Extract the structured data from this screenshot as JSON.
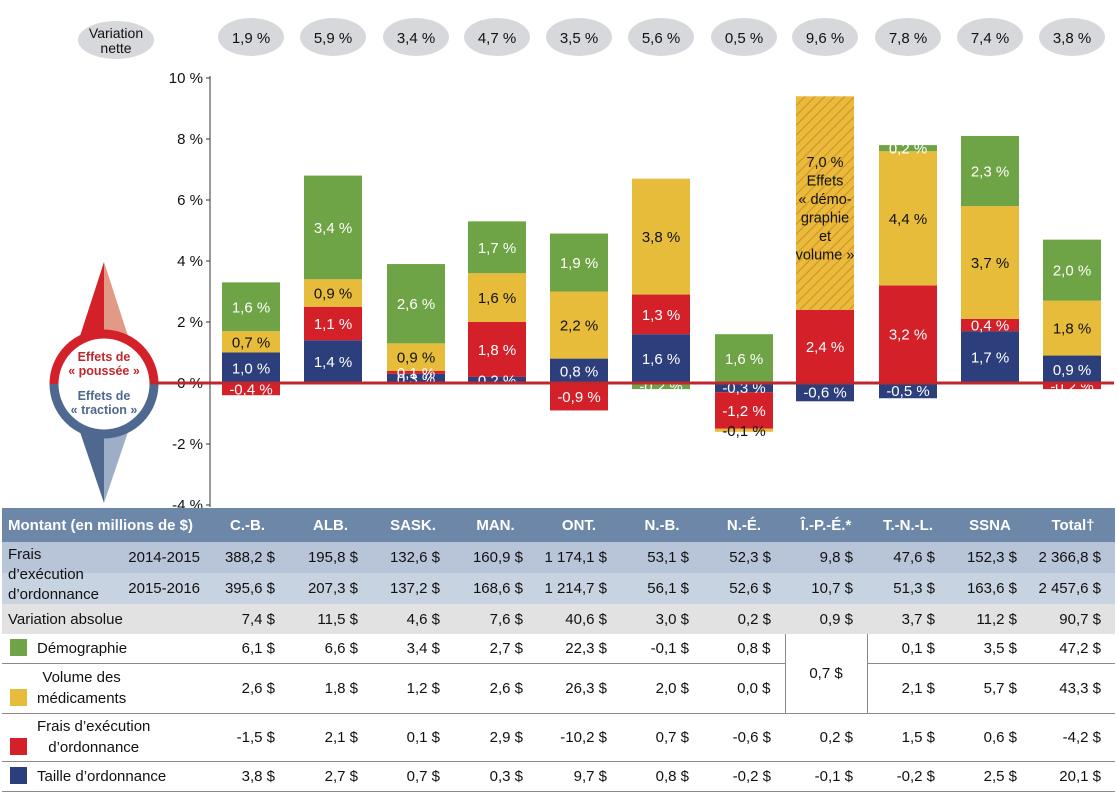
{
  "net_label": [
    "Variation",
    "nette"
  ],
  "compass": {
    "push_label": [
      "Effets de",
      "« poussée »"
    ],
    "pull_label": [
      "Effets de",
      "« traction »"
    ]
  },
  "colors": {
    "demographics": "#6ea446",
    "volume": "#e7bc3a",
    "dispensing_fee": "#d42029",
    "prescription_size": "#2c3f7c",
    "zero_line": "#c0272d"
  },
  "chart_data": {
    "type": "bar",
    "stacked": true,
    "categories": [
      "C.-B.",
      "ALB.",
      "SASK.",
      "MAN.",
      "ONT.",
      "N.-B.",
      "N.-É.",
      "Î.-P.-É.*",
      "T.-N.-L.",
      "SSNA",
      "Total†"
    ],
    "net_change": [
      "1,9 %",
      "5,9 %",
      "3,4 %",
      "4,7 %",
      "3,5 %",
      "5,6 %",
      "0,5 %",
      "9,6 %",
      "7,8 %",
      "7,4 %",
      "3,8 %"
    ],
    "ylim": [
      -4,
      10
    ],
    "yticks": [
      -4,
      -2,
      0,
      2,
      4,
      6,
      8,
      10
    ],
    "ytick_labels": [
      "-4 %",
      "-2 %",
      "0 %",
      "2 %",
      "4 %",
      "6 %",
      "8 %",
      "10 %"
    ],
    "series": [
      {
        "key": "prescription_size",
        "values": [
          1.0,
          1.4,
          0.3,
          0.2,
          0.8,
          1.6,
          -0.3,
          -0.6,
          -0.5,
          1.7,
          0.9
        ],
        "labels": [
          "1,0 %",
          "1,4 %",
          "0,3 %",
          "0,2 %",
          "0,8 %",
          "1,6 %",
          "-0,3 %",
          "-0,6 %",
          "-0,5 %",
          "1,7 %",
          "0,9 %"
        ]
      },
      {
        "key": "dispensing_fee",
        "values": [
          -0.4,
          1.1,
          0.1,
          1.8,
          -0.9,
          1.3,
          -1.2,
          2.4,
          3.2,
          0.4,
          -0.2
        ],
        "labels": [
          "-0,4 %",
          "1,1 %",
          "0,1 %",
          "1,8 %",
          "-0,9 %",
          "1,3 %",
          "-1,2 %",
          "2,4 %",
          "3,2 %",
          "0,4 %",
          "-0,2 %"
        ]
      },
      {
        "key": "volume",
        "values": [
          0.7,
          0.9,
          0.9,
          1.6,
          2.2,
          3.8,
          -0.1,
          null,
          4.4,
          3.7,
          1.8
        ],
        "labels": [
          "0,7 %",
          "0,9 %",
          "0,9 %",
          "1,6 %",
          "2,2 %",
          "3,8 %",
          "-0,1 %",
          "",
          "4,4 %",
          "3,7 %",
          "1,8 %"
        ]
      },
      {
        "key": "demographics",
        "values": [
          1.6,
          3.4,
          2.6,
          1.7,
          1.9,
          -0.2,
          1.6,
          null,
          0.2,
          2.3,
          2.0
        ],
        "labels": [
          "1,6 %",
          "3,4 %",
          "2,6 %",
          "1,7 %",
          "1,9 %",
          "-0,2 %",
          "1,6 %",
          "",
          "0,2 %",
          "2,3 %",
          "2,0 %"
        ]
      },
      {
        "key": "demographics_volume",
        "values": [
          null,
          null,
          null,
          null,
          null,
          null,
          null,
          7.0,
          null,
          null,
          null
        ],
        "labels": [
          "",
          "",
          "",
          "",
          "",
          "",
          "",
          "7,0 %",
          "",
          "",
          ""
        ]
      }
    ],
    "combined_label": [
      "7,0 %",
      "Effets",
      "« démo-",
      "graphie",
      "et",
      "volume »"
    ]
  },
  "table": {
    "header": [
      "Montant (en millions de $)",
      "C.-B.",
      "ALB.",
      "SASK.",
      "MAN.",
      "ONT.",
      "N.-B.",
      "N.-É.",
      "Î.-P.-É.*",
      "T.-N.-L.",
      "SSNA",
      "Total†"
    ],
    "fees_label": [
      "Frais",
      "d’exécution",
      "d’ordonnance"
    ],
    "fees_rows": [
      {
        "year": "2014-2015",
        "values": [
          "388,2 $",
          "195,8 $",
          "132,6 $",
          "160,9 $",
          "1 174,1 $",
          "53,1 $",
          "52,3 $",
          "9,8 $",
          "47,6 $",
          "152,3 $",
          "2 366,8 $"
        ]
      },
      {
        "year": "2015-2016",
        "values": [
          "395,6 $",
          "207,3 $",
          "137,2 $",
          "168,6 $",
          "1 214,7 $",
          "56,1 $",
          "52,6 $",
          "10,7 $",
          "51,3 $",
          "163,6 $",
          "2 457,6 $"
        ]
      }
    ],
    "absolute": {
      "label": "Variation absolue",
      "values": [
        "7,4 $",
        "11,5 $",
        "4,6 $",
        "7,6 $",
        "40,6 $",
        "3,0 $",
        "0,2 $",
        "0,9 $",
        "3,7 $",
        "11,2 $",
        "90,7 $"
      ]
    },
    "demographics": {
      "label": "Démographie",
      "values": [
        "6,1 $",
        "6,6 $",
        "3,4 $",
        "2,7 $",
        "22,3 $",
        "-0,1 $",
        "0,8 $",
        "0,1 $",
        "3,5 $",
        "47,2 $"
      ]
    },
    "volume": {
      "label": [
        "Volume des",
        "médicaments"
      ],
      "values": [
        "2,6 $",
        "1,8 $",
        "1,2 $",
        "2,6 $",
        "26,3 $",
        "2,0 $",
        "0,0 $",
        "2,1 $",
        "5,7 $",
        "43,3 $"
      ]
    },
    "pei_combined": "0,7 $",
    "fee": {
      "label": [
        "Frais d’exécution",
        "d’ordonnance"
      ],
      "values": [
        "-1,5 $",
        "2,1 $",
        "0,1 $",
        "2,9 $",
        "-10,2 $",
        "0,7 $",
        "-0,6 $",
        "0,2 $",
        "1,5 $",
        "0,6 $",
        "-4,2 $"
      ]
    },
    "size": {
      "label": "Taille d’ordonnance",
      "values": [
        "3,8 $",
        "2,7 $",
        "0,7 $",
        "0,3 $",
        "9,7 $",
        "0,8 $",
        "-0,2 $",
        "-0,1 $",
        "-0,2 $",
        "2,5 $",
        "20,1 $"
      ]
    }
  }
}
